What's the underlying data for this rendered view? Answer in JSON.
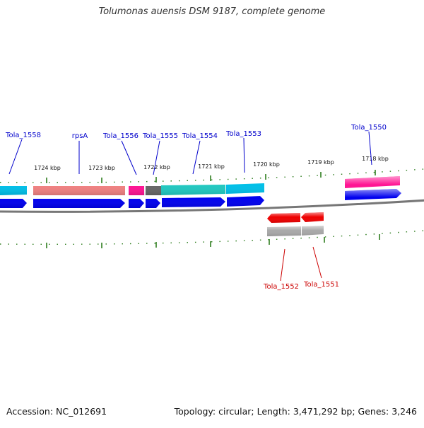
{
  "title": "Tolumonas auensis DSM 9187, complete genome",
  "footer": {
    "accession": "Accession: NC_012691",
    "summary": "Topology: circular; Length: 3,471,292 bp; Genes: 3,246"
  },
  "colors": {
    "forward_gene_label": "#0000cc",
    "reverse_gene_label": "#cc0000",
    "backbone": "#777777",
    "tick": "#2e7d1e",
    "cds_forward": "#0000ee",
    "cds_reverse": "#ee0000",
    "pseudogene": "#a8a8a8"
  },
  "scale": {
    "ticks": [
      "1724 kbp",
      "1723 kbp",
      "1722 kbp",
      "1721 kbp",
      "1720 kbp",
      "1719 kbp",
      "1718 kbp"
    ]
  },
  "genes": [
    {
      "label": "Tola_1558",
      "strand": "forward",
      "color": "#00bfe8"
    },
    {
      "label": "rpsA",
      "strand": "forward",
      "color": "#f08080"
    },
    {
      "label": "Tola_1556",
      "strand": "forward",
      "color": "#ff1493"
    },
    {
      "label": "Tola_1555",
      "strand": "forward",
      "color": "#666666"
    },
    {
      "label": "Tola_1554",
      "strand": "forward",
      "color": "#20c8c0"
    },
    {
      "label": "Tola_1553",
      "strand": "forward",
      "color": "#00bfe8"
    },
    {
      "label": "Tola_1552",
      "strand": "reverse",
      "color": "#a8a8a8"
    },
    {
      "label": "Tola_1551",
      "strand": "reverse",
      "color": "#a8a8a8"
    },
    {
      "label": "Tola_1550",
      "strand": "forward",
      "color": "#ff1493"
    }
  ]
}
